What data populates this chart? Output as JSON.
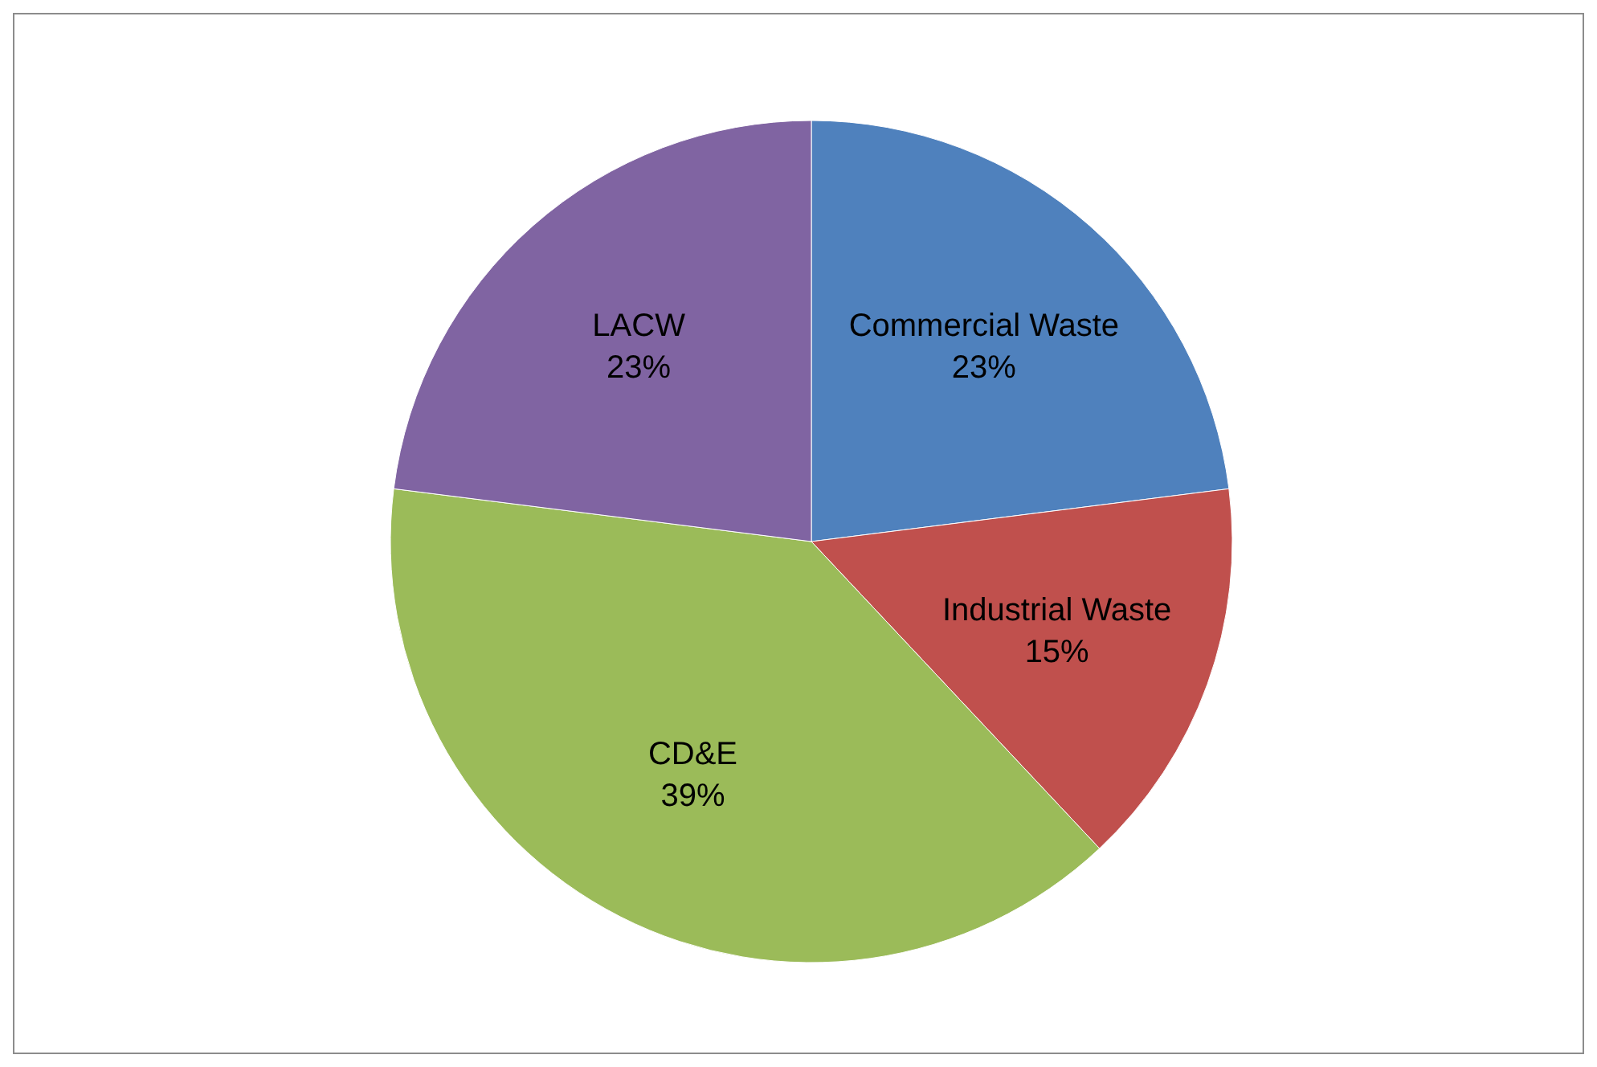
{
  "chart_data": {
    "type": "pie",
    "categories": [
      "Commercial Waste",
      "Industrial Waste",
      "CD&E",
      "LACW"
    ],
    "values": [
      23,
      15,
      39,
      23
    ],
    "colors": [
      "#4f81bd",
      "#c0504d",
      "#9bbb59",
      "#8064a2"
    ],
    "value_labels": [
      "23%",
      "15%",
      "39%",
      "23%"
    ],
    "legend": false
  }
}
